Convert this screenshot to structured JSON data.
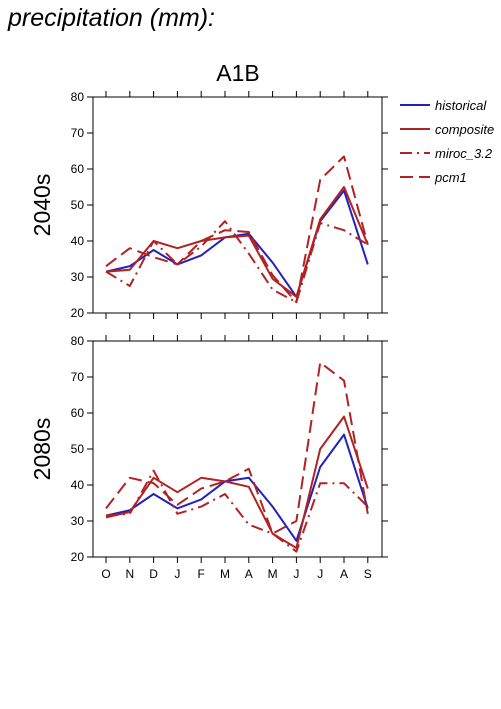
{
  "figure_title": "precipitation (mm):",
  "chart_data": {
    "type": "line",
    "title": "A1B",
    "xlabel": "",
    "ylabel": "",
    "categories": [
      "O",
      "N",
      "D",
      "J",
      "F",
      "M",
      "A",
      "M",
      "J",
      "J",
      "A",
      "S"
    ],
    "ylim": [
      20,
      80
    ],
    "yticks": [
      20,
      30,
      40,
      50,
      60,
      70,
      80
    ],
    "legend_position": "right",
    "legend": [
      {
        "name": "historical",
        "color": "#2222bb",
        "dash": "solid"
      },
      {
        "name": "composite",
        "color": "#b22222",
        "dash": "solid"
      },
      {
        "name": "miroc_3.2",
        "color": "#b22222",
        "dash": "dashdot"
      },
      {
        "name": "pcm1",
        "color": "#b22222",
        "dash": "dashed"
      }
    ],
    "panels": [
      {
        "label": "2040s",
        "series": [
          {
            "name": "historical",
            "values": [
              31.5,
              33,
              37.5,
              33.5,
              36,
              41,
              42,
              34,
              24.5,
              45.5,
              54,
              33.5
            ]
          },
          {
            "name": "composite",
            "values": [
              31.5,
              32,
              40,
              38,
              40,
              41,
              41.5,
              29.5,
              24.5,
              46,
              55,
              39
            ]
          },
          {
            "name": "miroc_3.2",
            "values": [
              31.5,
              27.5,
              40,
              33.5,
              38.5,
              45.5,
              36.5,
              26.5,
              23,
              45,
              43,
              39
            ]
          },
          {
            "name": "pcm1",
            "values": [
              33,
              38,
              35.5,
              33.5,
              40,
              43,
              42.5,
              30.5,
              23,
              57,
              63.5,
              39
            ]
          }
        ]
      },
      {
        "label": "2080s",
        "series": [
          {
            "name": "historical",
            "values": [
              31.5,
              33,
              37.5,
              33.5,
              36,
              41,
              42,
              34,
              24.5,
              45,
              54,
              33.5
            ]
          },
          {
            "name": "composite",
            "values": [
              31,
              32.5,
              42,
              38,
              42,
              41,
              39.5,
              26.5,
              22.5,
              50,
              59,
              39
            ]
          },
          {
            "name": "miroc_3.2",
            "values": [
              31.5,
              32,
              44,
              32,
              34,
              37.5,
              29,
              26.5,
              21.5,
              40.5,
              40.5,
              34
            ]
          },
          {
            "name": "pcm1",
            "values": [
              33.5,
              42,
              40.5,
              34.5,
              39,
              41,
              44.5,
              26.5,
              30,
              74,
              69,
              32
            ]
          }
        ]
      }
    ]
  }
}
